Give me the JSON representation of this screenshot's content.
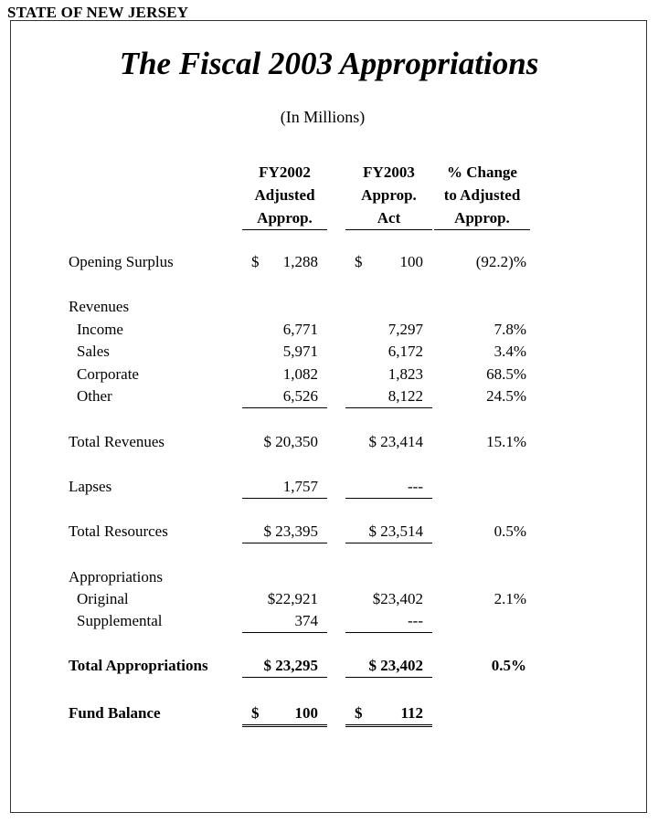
{
  "state_header": "STATE OF NEW JERSEY",
  "title": "The Fiscal 2003 Appropriations",
  "subtitle": "(In Millions)",
  "columns": [
    {
      "line1": "FY2002",
      "line2": "Adjusted",
      "line3": "Approp."
    },
    {
      "line1": "FY2003",
      "line2": "Approp.",
      "line3": "Act"
    },
    {
      "line1": "% Change",
      "line2": "to Adjusted",
      "line3": "Approp."
    }
  ],
  "rows": {
    "opening_surplus": {
      "label": "Opening Surplus",
      "fy2002_dollar": "$",
      "fy2002": "1,288",
      "fy2003_dollar": "$",
      "fy2003": "100",
      "change": "(92.2)%"
    },
    "revenues_header": {
      "label": "Revenues"
    },
    "income": {
      "label": "Income",
      "fy2002": "6,771",
      "fy2003": "7,297",
      "change": "7.8%"
    },
    "sales": {
      "label": "Sales",
      "fy2002": "5,971",
      "fy2003": "6,172",
      "change": "3.4%"
    },
    "corporate": {
      "label": "Corporate",
      "fy2002": "1,082",
      "fy2003": "1,823",
      "change": "68.5%"
    },
    "other": {
      "label": "Other",
      "fy2002": "6,526",
      "fy2003": "8,122",
      "change": "24.5%"
    },
    "total_revenues": {
      "label": "Total Revenues",
      "fy2002": "$ 20,350",
      "fy2003": "$ 23,414",
      "change": "15.1%"
    },
    "lapses": {
      "label": "Lapses",
      "fy2002": "1,757",
      "fy2003": "---"
    },
    "total_resources": {
      "label": "Total Resources",
      "fy2002": "$ 23,395",
      "fy2003": "$ 23,514",
      "change": "0.5%"
    },
    "appropriations_header": {
      "label": "Appropriations"
    },
    "original": {
      "label": "Original",
      "fy2002": "$22,921",
      "fy2003": "$23,402",
      "change": "2.1%"
    },
    "supplemental": {
      "label": "Supplemental",
      "fy2002": "374",
      "fy2003": "---"
    },
    "total_appropriations": {
      "label": "Total Appropriations",
      "fy2002": "$ 23,295",
      "fy2003": "$ 23,402",
      "change": "0.5%"
    },
    "fund_balance": {
      "label": "Fund Balance",
      "fy2002_dollar": "$",
      "fy2002": "100",
      "fy2003_dollar": "$",
      "fy2003": "112"
    }
  }
}
